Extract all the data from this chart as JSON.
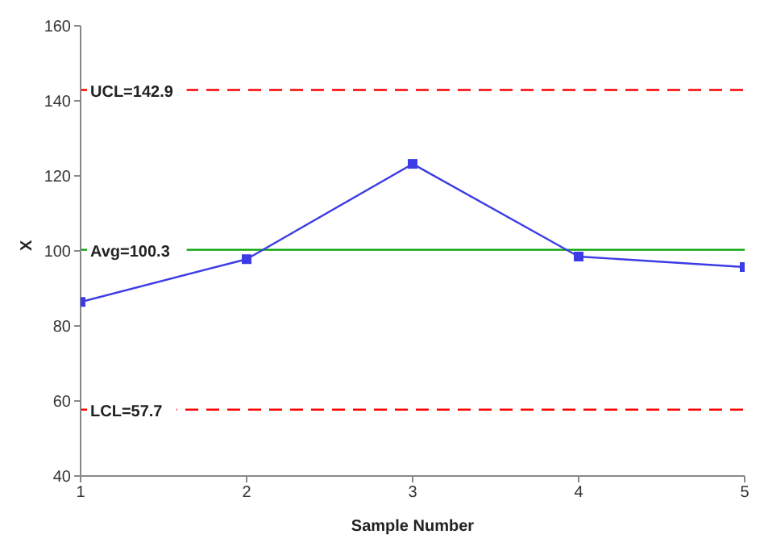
{
  "chart_data": {
    "type": "line",
    "xlabel": "Sample Number",
    "ylabel": "X",
    "x": [
      1,
      2,
      3,
      4,
      5
    ],
    "series": [
      {
        "color": "#3c3ce6",
        "values": [
          86.4,
          97.8,
          123.2,
          98.5,
          95.7
        ]
      }
    ],
    "xlim": [
      1,
      5
    ],
    "xticks": [
      1,
      2,
      3,
      4,
      5
    ],
    "ylim": [
      40,
      160
    ],
    "yticks": [
      40,
      60,
      80,
      100,
      120,
      140,
      160
    ],
    "ref_lines": [
      {
        "axis": "y",
        "value": 142.9,
        "label": "UCL=142.9",
        "color": "#ff0000",
        "line_style": "dashed"
      },
      {
        "axis": "y",
        "value": 100.3,
        "label": "Avg=100.3",
        "color": "#00a000",
        "line_style": "solid"
      },
      {
        "axis": "y",
        "value": 57.7,
        "label": "LCL=57.7",
        "color": "#ff0000",
        "line_style": "dashed"
      }
    ],
    "marker": "square",
    "line_style": "solid",
    "grid": false,
    "legend": false
  }
}
